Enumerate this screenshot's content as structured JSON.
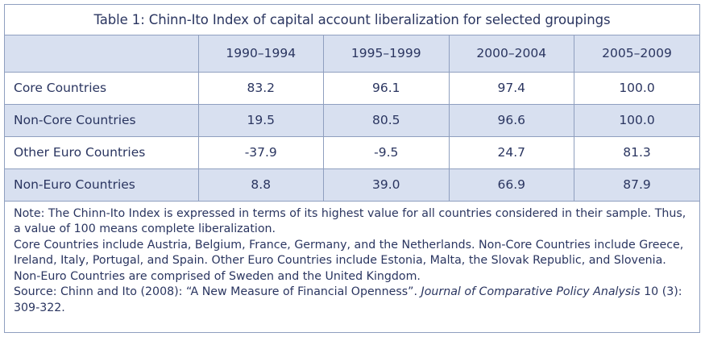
{
  "table": {
    "title": "Table 1: Chinn-Ito Index of capital account liberalization for selected groupings",
    "columns": [
      "",
      "1990–1994",
      "1995–1999",
      "2000–2004",
      "2005–2009"
    ],
    "rows": [
      {
        "label": "Core Countries",
        "values": [
          "83.2",
          "96.1",
          "97.4",
          "100.0"
        ]
      },
      {
        "label": "Non-Core Countries",
        "values": [
          "19.5",
          "80.5",
          "96.6",
          "100.0"
        ]
      },
      {
        "label": "Other Euro Countries",
        "values": [
          "-37.9",
          "-9.5",
          "24.7",
          "81.3"
        ]
      },
      {
        "label": "Non-Euro Countries",
        "values": [
          "8.8",
          "39.0",
          "66.9",
          "87.9"
        ]
      }
    ],
    "colors": {
      "border": "#8f9fbf",
      "shade": "#d8e0f0",
      "text": "#2a3560"
    }
  },
  "notes": {
    "note": "Note: The Chinn-Ito Index is expressed in terms of its highest value for all countries considered in their sample. Thus, a value of 100 means complete liberalization.",
    "groupings": "Core Countries include Austria, Belgium, France, Germany, and the Netherlands.  Non-Core Countries include Greece, Ireland, Italy, Portugal, and Spain.  Other Euro Countries include Estonia, Malta, the Slovak Republic, and Slovenia. Non-Euro Countries are comprised of Sweden and the United Kingdom.",
    "source_prefix": "Source: Chinn and Ito (2008): “A New Measure of Financial Openness”.",
    "source_journal": "Journal of Comparative Policy Analysis",
    "source_suffix": "10 (3): 309-322."
  }
}
